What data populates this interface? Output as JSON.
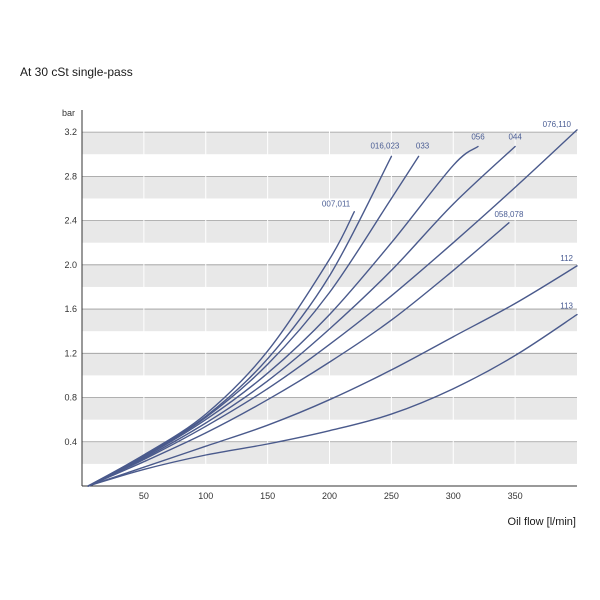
{
  "chart_data": {
    "type": "line",
    "title": "",
    "subtitle": "At 30 cSt single-pass",
    "xlabel": "Oil flow [l/min]",
    "ylabel": "bar",
    "xlim": [
      0,
      400
    ],
    "ylim": [
      0,
      3.4
    ],
    "xticks": [
      50,
      100,
      150,
      200,
      250,
      300,
      350
    ],
    "yticks": [
      0.4,
      0.8,
      1.2,
      1.6,
      2.0,
      2.4,
      2.8,
      3.2
    ],
    "ytick_labels": [
      "0.4",
      "0.8",
      "1.2",
      "1.6",
      "2.0",
      "2.4",
      "2.8",
      "3.2"
    ],
    "grid": true,
    "band_colors": [
      "#e8e8e8",
      "#ffffff"
    ],
    "series_color": "#4a5a8c",
    "label_color": "#4a5d94",
    "series": [
      {
        "name": "007,011",
        "x": [
          5,
          50,
          100,
          150,
          200,
          220
        ],
        "y": [
          0.0,
          0.28,
          0.65,
          1.22,
          2.05,
          2.48
        ]
      },
      {
        "name": "016,023",
        "x": [
          5,
          50,
          100,
          150,
          200,
          250
        ],
        "y": [
          0.0,
          0.28,
          0.63,
          1.15,
          1.9,
          2.98
        ]
      },
      {
        "name": "033",
        "x": [
          5,
          50,
          100,
          150,
          200,
          250,
          272
        ],
        "y": [
          0.0,
          0.27,
          0.62,
          1.1,
          1.75,
          2.6,
          2.98
        ]
      },
      {
        "name": "056",
        "x": [
          5,
          50,
          100,
          150,
          200,
          250,
          300,
          320
        ],
        "y": [
          0.0,
          0.26,
          0.6,
          1.02,
          1.55,
          2.2,
          2.9,
          3.07
        ]
      },
      {
        "name": "044",
        "x": [
          5,
          50,
          100,
          150,
          200,
          250,
          300,
          350
        ],
        "y": [
          0.0,
          0.25,
          0.57,
          0.95,
          1.42,
          1.95,
          2.55,
          3.07
        ]
      },
      {
        "name": "076,110",
        "x": [
          5,
          50,
          100,
          150,
          200,
          250,
          300,
          350,
          400
        ],
        "y": [
          0.0,
          0.24,
          0.54,
          0.88,
          1.28,
          1.72,
          2.2,
          2.7,
          3.22
        ]
      },
      {
        "name": "058,078",
        "x": [
          5,
          50,
          100,
          150,
          200,
          250,
          300,
          345
        ],
        "y": [
          0.0,
          0.22,
          0.48,
          0.78,
          1.12,
          1.5,
          1.95,
          2.38
        ]
      },
      {
        "name": "112",
        "x": [
          5,
          50,
          100,
          150,
          200,
          250,
          300,
          350,
          400
        ],
        "y": [
          0.0,
          0.17,
          0.36,
          0.55,
          0.78,
          1.05,
          1.35,
          1.65,
          1.99
        ]
      },
      {
        "name": "113",
        "x": [
          5,
          50,
          100,
          150,
          200,
          250,
          300,
          350,
          400
        ],
        "y": [
          0.0,
          0.15,
          0.28,
          0.38,
          0.5,
          0.65,
          0.88,
          1.18,
          1.55
        ]
      }
    ]
  }
}
